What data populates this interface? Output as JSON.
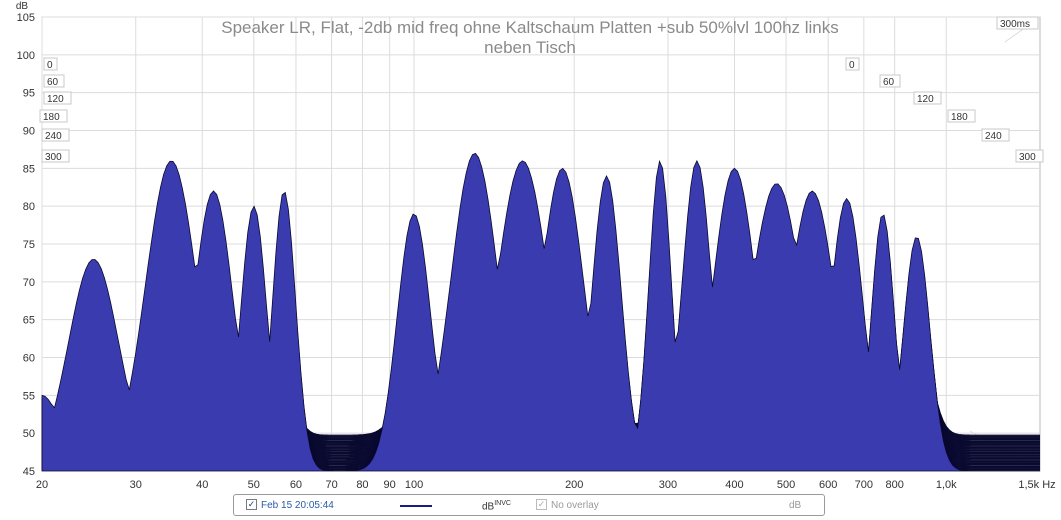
{
  "chart_data": {
    "type": "waterfall",
    "title_line1": "Speaker LR, Flat, -2db mid freq ohne Kaltschaum Platten +sub 50%lvl 100hz links",
    "title_line2": "neben Tisch",
    "y_unit": "dB",
    "y_ticks": [
      105,
      100,
      95,
      90,
      85,
      80,
      75,
      70,
      65,
      60,
      55,
      50,
      45
    ],
    "ylim": [
      45,
      105
    ],
    "x_unit": "1,5k Hz",
    "x_scale": "log",
    "xlim": [
      20,
      1500
    ],
    "x_tick_values": [
      20,
      30,
      40,
      50,
      60,
      70,
      80,
      90,
      100,
      200,
      300,
      400,
      500,
      600,
      700,
      800,
      1000
    ],
    "x_tick_labels": [
      "20",
      "30",
      "40",
      "50",
      "60",
      "70",
      "80",
      "90",
      "100",
      "200",
      "300",
      "400",
      "500",
      "600",
      "700",
      "800",
      "1,0k"
    ],
    "time_axis_unit": "300ms",
    "time_ticks": [
      "0",
      "60",
      "120",
      "180",
      "240",
      "300"
    ],
    "slices": 60,
    "fill_color": "#3b3bb0",
    "edge_color": "#0a0a30",
    "grid": true,
    "peaks_hz": [
      20,
      25,
      35,
      42,
      50,
      57,
      100,
      130,
      160,
      190,
      230,
      290,
      340,
      400,
      480,
      560,
      650,
      760,
      880
    ],
    "peak_front_db": [
      55,
      73,
      86,
      82,
      80,
      82,
      79,
      87,
      86,
      85,
      84,
      86,
      86,
      85,
      83,
      82,
      81,
      79,
      76
    ]
  },
  "legend": {
    "measurement": "Feb 15 20:05:44",
    "measurement_checked": "✓",
    "unit_label": "dB",
    "unit_sup": "INVC",
    "overlay_label": "No overlay",
    "overlay_checked": "✓",
    "overlay_unit": "dB",
    "line_color": "#1a1a8c"
  }
}
